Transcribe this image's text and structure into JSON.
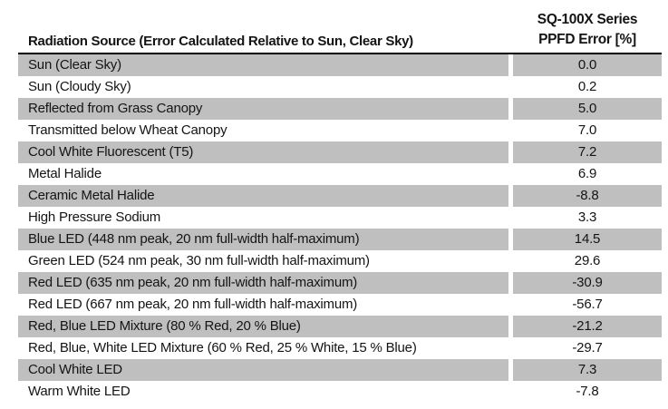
{
  "table": {
    "header": {
      "source_label": "Radiation Source (Error Calculated Relative to Sun, Clear Sky)",
      "series_line1": "SQ-100X Series",
      "series_line2": "PPFD Error [%]"
    },
    "rows": [
      {
        "source": "Sun (Clear Sky)",
        "error": "0.0",
        "shaded": true
      },
      {
        "source": "Sun (Cloudy Sky)",
        "error": "0.2",
        "shaded": false
      },
      {
        "source": "Reflected from Grass Canopy",
        "error": "5.0",
        "shaded": true
      },
      {
        "source": "Transmitted below Wheat Canopy",
        "error": "7.0",
        "shaded": false
      },
      {
        "source": "Cool White Fluorescent (T5)",
        "error": "7.2",
        "shaded": true
      },
      {
        "source": "Metal Halide",
        "error": "6.9",
        "shaded": false
      },
      {
        "source": "Ceramic Metal Halide",
        "error": "-8.8",
        "shaded": true
      },
      {
        "source": "High Pressure Sodium",
        "error": "3.3",
        "shaded": false
      },
      {
        "source": "Blue LED (448 nm peak, 20 nm full-width half-maximum)",
        "error": "14.5",
        "shaded": true
      },
      {
        "source": "Green LED (524 nm peak, 30 nm full-width half-maximum)",
        "error": "29.6",
        "shaded": false
      },
      {
        "source": "Red LED (635 nm peak, 20 nm full-width half-maximum)",
        "error": "-30.9",
        "shaded": true
      },
      {
        "source": "Red LED (667 nm peak, 20 nm full-width half-maximum)",
        "error": "-56.7",
        "shaded": false
      },
      {
        "source": "Red, Blue LED Mixture (80 % Red, 20 % Blue)",
        "error": "-21.2",
        "shaded": true
      },
      {
        "source": "Red, Blue, White LED Mixture (60 % Red, 25 % White, 15 % Blue)",
        "error": "-29.7",
        "shaded": false
      },
      {
        "source": "Cool White LED",
        "error": "7.3",
        "shaded": true
      },
      {
        "source": "Warm White LED",
        "error": "-7.8",
        "shaded": false
      }
    ]
  },
  "colors": {
    "row_shade": "#bfbfbf",
    "header_rule": "#000000",
    "text": "#141414",
    "background": "#ffffff"
  }
}
